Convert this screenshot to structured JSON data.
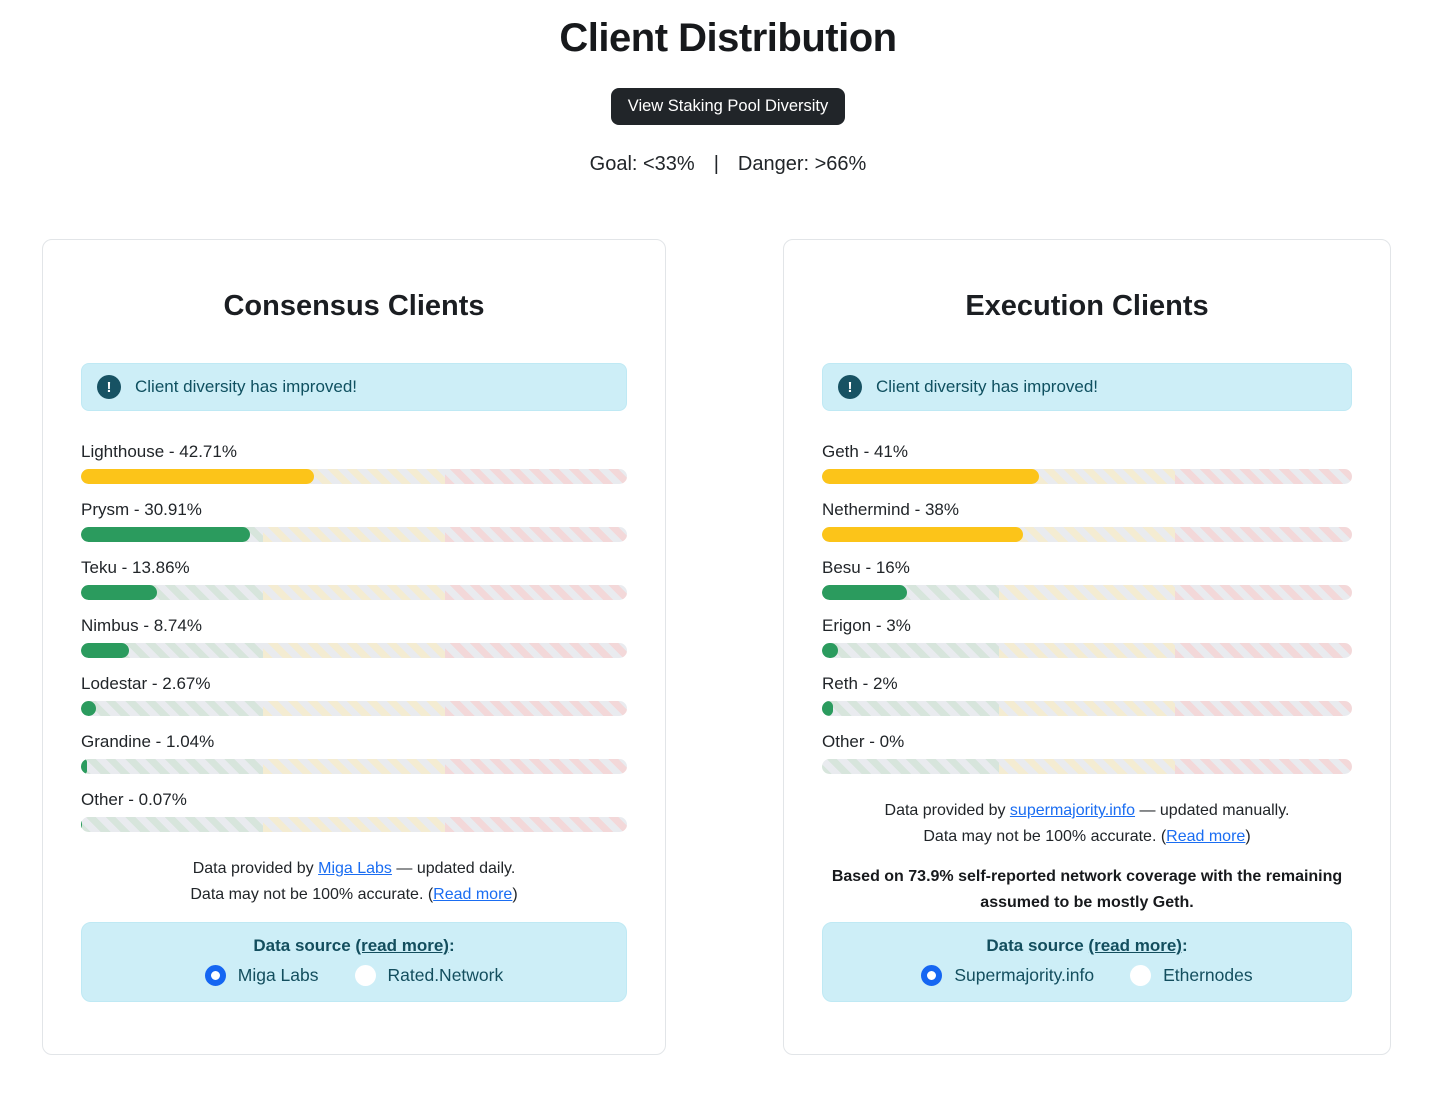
{
  "header": {
    "title": "Client Distribution",
    "button_label": "View Staking Pool Diversity",
    "goal_label": "Goal: <33%",
    "separator": "|",
    "danger_label": "Danger: >66%"
  },
  "colors": {
    "warning_fill": "#fcc419",
    "ok_fill": "#2b9b5e",
    "goal_zone_stripe": "#d7e5dc",
    "mid_zone_stripe": "#f4ecd2",
    "danger_zone_stripe": "#f3d8d9",
    "stripe_base": "#e9ebef",
    "banner_background": "#cdeef7",
    "banner_text": "#0f5060",
    "link_blue": "#1a6df2",
    "radio_accent": "#1566f2",
    "button_background": "#212529"
  },
  "chart_data": [
    {
      "type": "bar",
      "title": "Consensus Clients",
      "categories": [
        "Lighthouse",
        "Prysm",
        "Teku",
        "Nimbus",
        "Lodestar",
        "Grandine",
        "Other"
      ],
      "values": [
        42.71,
        30.91,
        13.86,
        8.74,
        2.67,
        1.04,
        0.07
      ],
      "unit": "%",
      "xlim": [
        0,
        100
      ],
      "goal_threshold": 33,
      "danger_threshold": 66,
      "bar_colors": [
        "#fcc419",
        "#2b9b5e",
        "#2b9b5e",
        "#2b9b5e",
        "#2b9b5e",
        "#2b9b5e",
        "#2b9b5e"
      ]
    },
    {
      "type": "bar",
      "title": "Execution Clients",
      "categories": [
        "Geth",
        "Nethermind",
        "Besu",
        "Erigon",
        "Reth",
        "Other"
      ],
      "values": [
        41,
        38,
        16,
        3,
        2,
        0
      ],
      "unit": "%",
      "xlim": [
        0,
        100
      ],
      "goal_threshold": 33,
      "danger_threshold": 66,
      "bar_colors": [
        "#fcc419",
        "#fcc419",
        "#2b9b5e",
        "#2b9b5e",
        "#2b9b5e",
        "#2b9b5e"
      ]
    }
  ],
  "cards": [
    {
      "title": "Consensus Clients",
      "banner_text": "Client diversity has improved!",
      "banner_icon_glyph": "!",
      "bar_labels": [
        "Lighthouse - 42.71%",
        "Prysm - 30.91%",
        "Teku - 13.86%",
        "Nimbus - 8.74%",
        "Lodestar - 2.67%",
        "Grandine - 1.04%",
        "Other - 0.07%"
      ],
      "provider_note": {
        "prefix": "Data provided by ",
        "link": "Miga Labs",
        "suffix": " — updated daily."
      },
      "accuracy_note": {
        "prefix": "Data may not be 100% accurate. (",
        "link": "Read more",
        "suffix": ")"
      },
      "source": {
        "label": "Data source ",
        "link": "(read more)",
        "colon": ":",
        "options": [
          {
            "label": "Miga Labs",
            "selected": true
          },
          {
            "label": "Rated.Network",
            "selected": false
          }
        ]
      }
    },
    {
      "title": "Execution Clients",
      "banner_text": "Client diversity has improved!",
      "banner_icon_glyph": "!",
      "bar_labels": [
        "Geth - 41%",
        "Nethermind - 38%",
        "Besu - 16%",
        "Erigon - 3%",
        "Reth - 2%",
        "Other - 0%"
      ],
      "provider_note": {
        "prefix": "Data provided by ",
        "link": "supermajority.info",
        "suffix": " — updated manually."
      },
      "accuracy_note": {
        "prefix": "Data may not be 100% accurate. (",
        "link": "Read more",
        "suffix": ")"
      },
      "coverage_note": "Based on 73.9% self-reported network coverage with the remaining assumed to be mostly Geth.",
      "source": {
        "label": "Data source ",
        "link": "(read more)",
        "colon": ":",
        "options": [
          {
            "label": "Supermajority.info",
            "selected": true
          },
          {
            "label": "Ethernodes",
            "selected": false
          }
        ]
      }
    }
  ]
}
